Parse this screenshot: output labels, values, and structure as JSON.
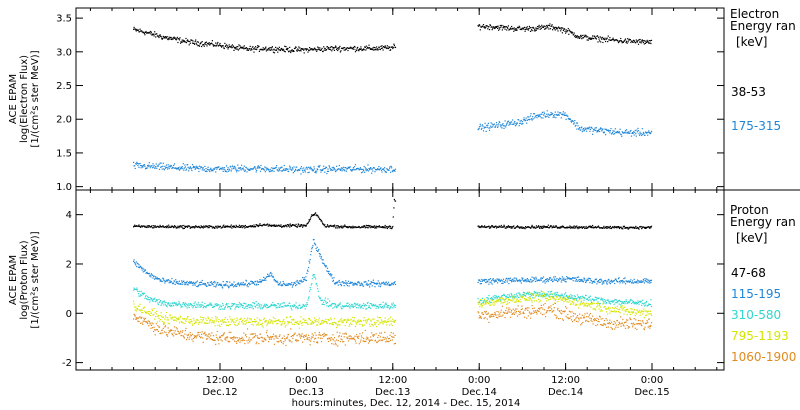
{
  "chart_data": [
    {
      "type": "scatter",
      "panel": "electron",
      "ylabel_lines": [
        "ACE EPAM",
        "log(Electron Flux)",
        "[1/(cm²s ster MeV)]"
      ],
      "ylim": [
        0.95,
        3.65
      ],
      "yticks": [
        1.0,
        1.5,
        2.0,
        2.5,
        3.0,
        3.5
      ],
      "ytick_labels": [
        "1.0",
        "1.5",
        "2.0",
        "2.5",
        "3.0",
        "3.5"
      ],
      "legend_title": [
        "Electron",
        "Energy ran",
        "[keV]"
      ],
      "series": [
        {
          "name": "38-53",
          "color": "#000000",
          "points": [
            [
              0,
              3.33
            ],
            [
              2,
              3.28
            ],
            [
              4,
              3.22
            ],
            [
              6,
              3.18
            ],
            [
              8,
              3.14
            ],
            [
              10,
              3.12
            ],
            [
              12,
              3.1
            ],
            [
              14,
              3.06
            ],
            [
              16,
              3.04
            ],
            [
              18,
              3.05
            ],
            [
              20,
              3.04
            ],
            [
              22,
              3.03
            ],
            [
              24,
              3.03
            ],
            [
              26,
              3.04
            ],
            [
              28,
              3.05
            ],
            [
              30,
              3.05
            ],
            [
              32,
              3.05
            ],
            [
              34,
              3.05
            ],
            [
              36,
              3.06
            ],
            [
              48,
              3.38
            ],
            [
              50,
              3.37
            ],
            [
              52,
              3.35
            ],
            [
              54,
              3.34
            ],
            [
              56,
              3.35
            ],
            [
              58,
              3.37
            ],
            [
              60,
              3.32
            ],
            [
              62,
              3.22
            ],
            [
              64,
              3.2
            ],
            [
              66,
              3.18
            ],
            [
              68,
              3.16
            ],
            [
              70,
              3.15
            ],
            [
              72,
              3.14
            ]
          ],
          "scatter": 0.035
        },
        {
          "name": "175-315",
          "color": "#1f86d8",
          "points": [
            [
              0,
              1.31
            ],
            [
              4,
              1.29
            ],
            [
              8,
              1.27
            ],
            [
              12,
              1.26
            ],
            [
              16,
              1.27
            ],
            [
              20,
              1.26
            ],
            [
              24,
              1.25
            ],
            [
              28,
              1.26
            ],
            [
              32,
              1.26
            ],
            [
              36,
              1.26
            ],
            [
              48,
              1.87
            ],
            [
              50,
              1.9
            ],
            [
              52,
              1.93
            ],
            [
              54,
              1.97
            ],
            [
              56,
              2.05
            ],
            [
              58,
              2.08
            ],
            [
              60,
              2.07
            ],
            [
              62,
              1.86
            ],
            [
              64,
              1.84
            ],
            [
              66,
              1.82
            ],
            [
              68,
              1.8
            ],
            [
              70,
              1.8
            ],
            [
              72,
              1.8
            ]
          ],
          "scatter": 0.045
        }
      ]
    },
    {
      "type": "scatter",
      "panel": "proton",
      "ylabel_lines": [
        "ACE EPAM",
        "log(Proton Flux)",
        "[1/(cm²s ster MeV)]"
      ],
      "ylim": [
        -2.3,
        5.0
      ],
      "yticks": [
        -2,
        0,
        2,
        4
      ],
      "ytick_labels": [
        "-2",
        "0",
        "2",
        "4"
      ],
      "legend_title": [
        "Proton",
        "Energy ran",
        "[keV]"
      ],
      "series": [
        {
          "name": "47-68",
          "color": "#000000",
          "points": [
            [
              0,
              3.52
            ],
            [
              10,
              3.5
            ],
            [
              16,
              3.52
            ],
            [
              18,
              3.6
            ],
            [
              19,
              3.55
            ],
            [
              24,
              3.55
            ],
            [
              24.8,
              3.95
            ],
            [
              25.3,
              4.05
            ],
            [
              25.8,
              3.85
            ],
            [
              26.5,
              3.55
            ],
            [
              30,
              3.5
            ],
            [
              36,
              3.5
            ],
            [
              36.2,
              4.6
            ],
            [
              48,
              3.5
            ],
            [
              60,
              3.5
            ],
            [
              66,
              3.48
            ],
            [
              72,
              3.48
            ]
          ],
          "scatter": 0.05
        },
        {
          "name": "115-195",
          "color": "#1f86d8",
          "points": [
            [
              0,
              2.1
            ],
            [
              2,
              1.6
            ],
            [
              4,
              1.3
            ],
            [
              8,
              1.2
            ],
            [
              12,
              1.15
            ],
            [
              16,
              1.2
            ],
            [
              18,
              1.3
            ],
            [
              19,
              1.6
            ],
            [
              20,
              1.2
            ],
            [
              22,
              1.15
            ],
            [
              24,
              1.4
            ],
            [
              25,
              2.95
            ],
            [
              27,
              1.7
            ],
            [
              28,
              1.25
            ],
            [
              32,
              1.2
            ],
            [
              36,
              1.2
            ],
            [
              48,
              1.3
            ],
            [
              56,
              1.35
            ],
            [
              60,
              1.4
            ],
            [
              64,
              1.3
            ],
            [
              68,
              1.3
            ],
            [
              72,
              1.3
            ]
          ],
          "scatter": 0.1
        },
        {
          "name": "310-580",
          "color": "#2ed6cf",
          "points": [
            [
              0,
              1.0
            ],
            [
              2,
              0.6
            ],
            [
              4,
              0.4
            ],
            [
              8,
              0.35
            ],
            [
              12,
              0.3
            ],
            [
              16,
              0.3
            ],
            [
              20,
              0.3
            ],
            [
              24,
              0.3
            ],
            [
              25,
              1.6
            ],
            [
              26,
              0.5
            ],
            [
              28,
              0.3
            ],
            [
              32,
              0.3
            ],
            [
              36,
              0.3
            ],
            [
              48,
              0.5
            ],
            [
              52,
              0.7
            ],
            [
              56,
              0.8
            ],
            [
              60,
              0.7
            ],
            [
              64,
              0.55
            ],
            [
              68,
              0.45
            ],
            [
              72,
              0.4
            ]
          ],
          "scatter": 0.12
        },
        {
          "name": "795-1193",
          "color": "#d4e600",
          "points": [
            [
              0,
              0.3
            ],
            [
              4,
              -0.2
            ],
            [
              8,
              -0.3
            ],
            [
              12,
              -0.35
            ],
            [
              16,
              -0.35
            ],
            [
              20,
              -0.35
            ],
            [
              24,
              -0.35
            ],
            [
              28,
              -0.35
            ],
            [
              32,
              -0.35
            ],
            [
              36,
              -0.35
            ],
            [
              48,
              0.4
            ],
            [
              52,
              0.55
            ],
            [
              56,
              0.65
            ],
            [
              60,
              0.55
            ],
            [
              64,
              0.3
            ],
            [
              68,
              0.1
            ],
            [
              72,
              0.0
            ]
          ],
          "scatter": 0.16
        },
        {
          "name": "1060-1900",
          "color": "#e08a1e",
          "points": [
            [
              0,
              -0.1
            ],
            [
              4,
              -0.7
            ],
            [
              8,
              -0.9
            ],
            [
              12,
              -1.0
            ],
            [
              16,
              -1.0
            ],
            [
              20,
              -1.0
            ],
            [
              24,
              -1.0
            ],
            [
              28,
              -1.0
            ],
            [
              32,
              -1.0
            ],
            [
              36,
              -1.0
            ],
            [
              48,
              -0.1
            ],
            [
              52,
              0.05
            ],
            [
              56,
              0.1
            ],
            [
              58,
              0.15
            ],
            [
              62,
              -0.2
            ],
            [
              66,
              -0.4
            ],
            [
              70,
              -0.45
            ],
            [
              72,
              -0.45
            ]
          ],
          "scatter": 0.22
        }
      ]
    }
  ],
  "x_axis": {
    "xlim": [
      -8,
      82
    ],
    "ticks": [
      12,
      24,
      36,
      48,
      60,
      72
    ],
    "minor_step": 3,
    "tick_labels": [
      {
        "time": "12:00",
        "date": "Dec.12"
      },
      {
        "time": "0:00",
        "date": "Dec.13"
      },
      {
        "time": "12:00",
        "date": "Dec.13"
      },
      {
        "time": "0:00",
        "date": "Dec.14"
      },
      {
        "time": "12:00",
        "date": "Dec.14"
      },
      {
        "time": "0:00",
        "date": "Dec.15"
      }
    ],
    "xlabel": "hours:minutes, Dec. 12, 2014 - Dec. 15, 2014"
  }
}
